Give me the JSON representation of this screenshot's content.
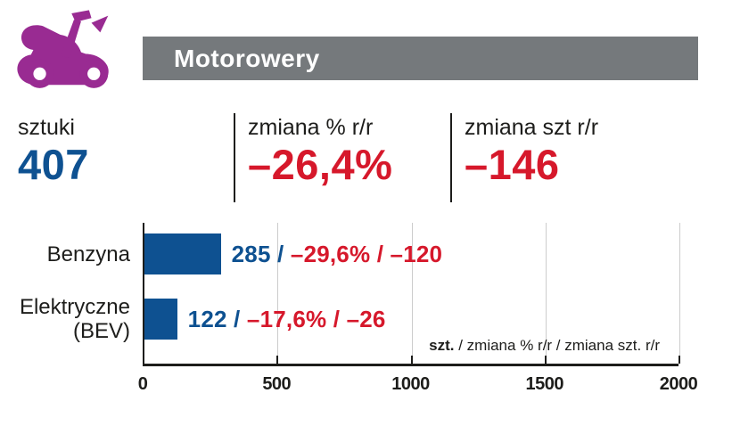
{
  "colors": {
    "accent_blue": "#0e5191",
    "accent_red": "#d6182b",
    "header_gray": "#75797c",
    "icon_purple": "#992b92",
    "text_dark": "#1d1d1b",
    "gridline_gray": "#cccccc"
  },
  "header": {
    "icon": "scooter-icon",
    "title": "Motorowery"
  },
  "stats": [
    {
      "label": "sztuki",
      "value": "407",
      "value_color": "#0e5191"
    },
    {
      "label": "zmiana % r/r",
      "value": "–26,4%",
      "value_color": "#d6182b"
    },
    {
      "label": "zmiana szt r/r",
      "value": "–146",
      "value_color": "#d6182b"
    }
  ],
  "chart_data": {
    "type": "bar",
    "orientation": "horizontal",
    "categories": [
      "Benzyna",
      "Elektryczne (BEV)"
    ],
    "values": [
      285,
      122
    ],
    "rows": [
      {
        "category_lines": [
          "Benzyna"
        ],
        "value": 285,
        "annotation_units": "285",
        "annotation_rest": "–29,6% / –120",
        "pct_change": "-29.6%",
        "abs_change": -120
      },
      {
        "category_lines": [
          "Elektryczne",
          "(BEV)"
        ],
        "value": 122,
        "annotation_units": "122",
        "annotation_rest": "–17,6% / –26",
        "pct_change": "-17.6%",
        "abs_change": -26
      }
    ],
    "xlim": [
      0,
      2000
    ],
    "xticks": [
      0,
      500,
      1000,
      1500,
      2000
    ],
    "grid": true,
    "legend_note_bold": "szt.",
    "legend_note_rest": " / zmiana % r/r / zmiana szt. r/r",
    "bar_color": "#0e5191",
    "annotation_units_color": "#0e5191",
    "annotation_rest_color": "#d6182b",
    "separator": " / "
  }
}
